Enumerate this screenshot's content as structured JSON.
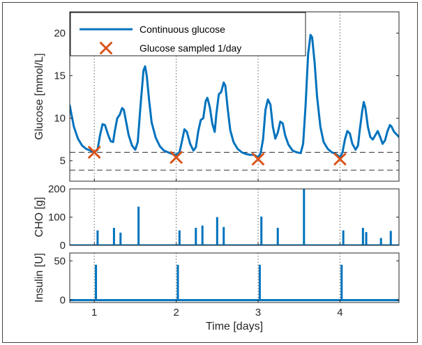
{
  "chart_data": [
    {
      "id": "glucose",
      "type": "line",
      "ylabel": "Glucose [mmol/L]",
      "xlim": [
        0.7,
        4.72
      ],
      "ylim": [
        2.6,
        22.5
      ],
      "yticks": [
        5,
        10,
        15,
        20
      ],
      "thresholds": [
        6,
        3.9
      ],
      "grid": false,
      "legend_position": "top-left",
      "series": [
        {
          "name": "Continuous glucose",
          "style": "line",
          "color": "#0072BD",
          "points": [
            [
              0.7,
              11.5
            ],
            [
              0.72,
              10.5
            ],
            [
              0.75,
              9.0
            ],
            [
              0.8,
              7.6
            ],
            [
              0.85,
              6.8
            ],
            [
              0.9,
              6.4
            ],
            [
              0.95,
              6.2
            ],
            [
              1.0,
              6.0
            ],
            [
              1.04,
              6.3
            ],
            [
              1.07,
              8.0
            ],
            [
              1.1,
              9.3
            ],
            [
              1.13,
              9.2
            ],
            [
              1.17,
              8.0
            ],
            [
              1.2,
              7.3
            ],
            [
              1.23,
              7.2
            ],
            [
              1.25,
              8.5
            ],
            [
              1.28,
              10.0
            ],
            [
              1.31,
              10.4
            ],
            [
              1.34,
              11.2
            ],
            [
              1.36,
              11.0
            ],
            [
              1.39,
              9.5
            ],
            [
              1.42,
              8.0
            ],
            [
              1.46,
              6.8
            ],
            [
              1.5,
              6.3
            ],
            [
              1.53,
              7.2
            ],
            [
              1.56,
              11.0
            ],
            [
              1.6,
              15.6
            ],
            [
              1.62,
              16.1
            ],
            [
              1.64,
              15.0
            ],
            [
              1.67,
              12.0
            ],
            [
              1.7,
              9.5
            ],
            [
              1.75,
              7.7
            ],
            [
              1.8,
              6.7
            ],
            [
              1.85,
              6.2
            ],
            [
              1.9,
              6.0
            ],
            [
              1.95,
              5.8
            ],
            [
              2.0,
              5.7
            ],
            [
              2.04,
              6.0
            ],
            [
              2.07,
              7.3
            ],
            [
              2.1,
              8.7
            ],
            [
              2.13,
              8.4
            ],
            [
              2.17,
              7.0
            ],
            [
              2.21,
              6.2
            ],
            [
              2.24,
              6.6
            ],
            [
              2.27,
              8.5
            ],
            [
              2.3,
              9.8
            ],
            [
              2.33,
              10.0
            ],
            [
              2.36,
              12.0
            ],
            [
              2.38,
              12.4
            ],
            [
              2.41,
              11.3
            ],
            [
              2.44,
              9.4
            ],
            [
              2.47,
              8.4
            ],
            [
              2.49,
              10.5
            ],
            [
              2.52,
              12.8
            ],
            [
              2.55,
              13.1
            ],
            [
              2.58,
              14.2
            ],
            [
              2.6,
              13.8
            ],
            [
              2.63,
              11.0
            ],
            [
              2.66,
              8.6
            ],
            [
              2.7,
              7.2
            ],
            [
              2.75,
              6.4
            ],
            [
              2.8,
              6.0
            ],
            [
              2.85,
              5.8
            ],
            [
              2.9,
              5.7
            ],
            [
              2.95,
              5.7
            ],
            [
              3.0,
              5.4
            ],
            [
              3.03,
              5.9
            ],
            [
              3.06,
              7.5
            ],
            [
              3.09,
              11.0
            ],
            [
              3.12,
              12.2
            ],
            [
              3.15,
              11.6
            ],
            [
              3.18,
              9.0
            ],
            [
              3.21,
              7.6
            ],
            [
              3.24,
              8.3
            ],
            [
              3.27,
              9.6
            ],
            [
              3.3,
              9.4
            ],
            [
              3.33,
              8.0
            ],
            [
              3.37,
              6.9
            ],
            [
              3.42,
              6.2
            ],
            [
              3.47,
              6.0
            ],
            [
              3.52,
              5.9
            ],
            [
              3.55,
              7.0
            ],
            [
              3.58,
              11.5
            ],
            [
              3.61,
              17.5
            ],
            [
              3.64,
              19.8
            ],
            [
              3.66,
              19.5
            ],
            [
              3.69,
              16.5
            ],
            [
              3.72,
              12.5
            ],
            [
              3.76,
              9.0
            ],
            [
              3.8,
              7.2
            ],
            [
              3.85,
              6.4
            ],
            [
              3.9,
              6.0
            ],
            [
              3.95,
              5.8
            ],
            [
              4.0,
              5.4
            ],
            [
              4.03,
              6.0
            ],
            [
              4.06,
              7.5
            ],
            [
              4.09,
              8.5
            ],
            [
              4.12,
              8.2
            ],
            [
              4.15,
              7.0
            ],
            [
              4.19,
              6.3
            ],
            [
              4.22,
              6.8
            ],
            [
              4.24,
              8.5
            ],
            [
              4.27,
              10.8
            ],
            [
              4.29,
              11.9
            ],
            [
              4.31,
              11.2
            ],
            [
              4.34,
              9.0
            ],
            [
              4.37,
              7.8
            ],
            [
              4.4,
              7.5
            ],
            [
              4.43,
              8.0
            ],
            [
              4.46,
              8.5
            ],
            [
              4.49,
              7.8
            ],
            [
              4.52,
              7.0
            ],
            [
              4.55,
              7.4
            ],
            [
              4.58,
              8.5
            ],
            [
              4.61,
              9.2
            ],
            [
              4.63,
              9.0
            ],
            [
              4.66,
              8.4
            ],
            [
              4.7,
              8.0
            ],
            [
              4.72,
              7.8
            ]
          ]
        },
        {
          "name": "Glucose sampled 1/day",
          "style": "marker",
          "color": "#D95319",
          "points": [
            [
              1.0,
              6.0
            ],
            [
              2.0,
              5.4
            ],
            [
              3.0,
              5.2
            ],
            [
              4.0,
              5.2
            ]
          ]
        }
      ]
    },
    {
      "id": "cho",
      "type": "bar",
      "ylabel": "CHO [g]",
      "xlim": [
        0.7,
        4.72
      ],
      "ylim": [
        0,
        200
      ],
      "yticks": [
        0,
        100,
        200
      ],
      "color": "#0072BD",
      "points": [
        [
          1.04,
          53
        ],
        [
          1.24,
          62
        ],
        [
          1.32,
          45
        ],
        [
          1.54,
          137
        ],
        [
          2.04,
          53
        ],
        [
          2.24,
          62
        ],
        [
          2.32,
          70
        ],
        [
          2.5,
          100
        ],
        [
          2.58,
          65
        ],
        [
          3.04,
          102
        ],
        [
          3.24,
          62
        ],
        [
          3.56,
          200
        ],
        [
          4.04,
          53
        ],
        [
          4.28,
          62
        ],
        [
          4.32,
          47
        ],
        [
          4.5,
          26
        ],
        [
          4.62,
          51
        ]
      ]
    },
    {
      "id": "insulin",
      "type": "bar",
      "ylabel": "Insulin [U]",
      "xlabel": "Time [days]",
      "xlim": [
        0.7,
        4.72
      ],
      "ylim": [
        -3,
        60
      ],
      "yticks": [
        0,
        50
      ],
      "xticks": [
        1,
        2,
        3,
        4
      ],
      "color": "#0072BD",
      "points": [
        [
          1.02,
          45
        ],
        [
          2.02,
          45
        ],
        [
          3.02,
          45
        ],
        [
          4.02,
          45
        ]
      ]
    }
  ]
}
